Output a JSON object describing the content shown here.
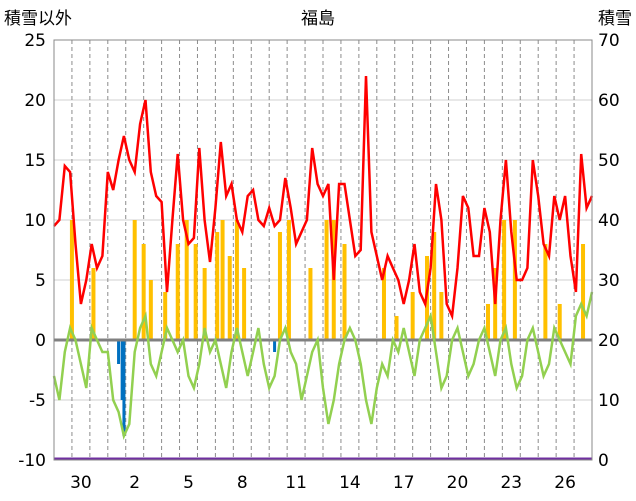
{
  "chart_data": {
    "type": "line",
    "title": "福島",
    "left_axis_label": "積雪以外",
    "right_axis_label": "積雪",
    "y_left": {
      "min": -10,
      "max": 25,
      "ticks": [
        "25",
        "20",
        "15",
        "10",
        "5",
        "0",
        "-5",
        "-10"
      ],
      "values": [
        25,
        20,
        15,
        10,
        5,
        0,
        -5,
        -10
      ]
    },
    "y_right": {
      "min": 0,
      "max": 70,
      "ticks": [
        "70",
        "60",
        "50",
        "40",
        "30",
        "20",
        "10",
        "0"
      ],
      "values": [
        70,
        60,
        50,
        40,
        30,
        20,
        10,
        0
      ]
    },
    "x": {
      "days": 30,
      "tick_labels": [
        "30",
        "2",
        "5",
        "8",
        "11",
        "14",
        "17",
        "20",
        "23",
        "26"
      ],
      "tick_positions": [
        1.5,
        4.5,
        7.5,
        10.5,
        13.5,
        16.5,
        19.5,
        22.5,
        25.5,
        28.5
      ]
    },
    "grid": true,
    "colors": {
      "temperature": "#ff0000",
      "precipitation": "#ffc000",
      "sunshine_diff": "#92d050",
      "snow": "#0070c0",
      "base": "#7030a0",
      "zero_line": "#808080"
    },
    "series": [
      {
        "key": "temperature",
        "points": [
          [
            0,
            9.5
          ],
          [
            0.3,
            10
          ],
          [
            0.6,
            14.5
          ],
          [
            0.9,
            14
          ],
          [
            1.2,
            8
          ],
          [
            1.5,
            3
          ],
          [
            1.8,
            5
          ],
          [
            2.1,
            8
          ],
          [
            2.4,
            6
          ],
          [
            2.7,
            7
          ],
          [
            3,
            14
          ],
          [
            3.3,
            12.5
          ],
          [
            3.6,
            15
          ],
          [
            3.9,
            17
          ],
          [
            4.2,
            15
          ],
          [
            4.5,
            14
          ],
          [
            4.8,
            18
          ],
          [
            5.1,
            20
          ],
          [
            5.4,
            14
          ],
          [
            5.7,
            12
          ],
          [
            6,
            11.5
          ],
          [
            6.3,
            4
          ],
          [
            6.6,
            10
          ],
          [
            6.9,
            15.5
          ],
          [
            7.2,
            10
          ],
          [
            7.5,
            8
          ],
          [
            7.8,
            8.5
          ],
          [
            8.1,
            16
          ],
          [
            8.4,
            10
          ],
          [
            8.7,
            6.5
          ],
          [
            9,
            11
          ],
          [
            9.3,
            16.5
          ],
          [
            9.6,
            12
          ],
          [
            9.9,
            13
          ],
          [
            10.2,
            10
          ],
          [
            10.5,
            9
          ],
          [
            10.8,
            12
          ],
          [
            11.1,
            12.5
          ],
          [
            11.4,
            10
          ],
          [
            11.7,
            9.5
          ],
          [
            12,
            11
          ],
          [
            12.3,
            9.5
          ],
          [
            12.6,
            10
          ],
          [
            12.9,
            13.5
          ],
          [
            13.2,
            11
          ],
          [
            13.5,
            8
          ],
          [
            13.8,
            9
          ],
          [
            14.1,
            10
          ],
          [
            14.4,
            16
          ],
          [
            14.7,
            13
          ],
          [
            15,
            12
          ],
          [
            15.3,
            13
          ],
          [
            15.6,
            5
          ],
          [
            15.9,
            13
          ],
          [
            16.2,
            13
          ],
          [
            16.5,
            10
          ],
          [
            16.8,
            7
          ],
          [
            17.1,
            7.5
          ],
          [
            17.4,
            22
          ],
          [
            17.7,
            9
          ],
          [
            18,
            7
          ],
          [
            18.3,
            5
          ],
          [
            18.6,
            7
          ],
          [
            18.9,
            6
          ],
          [
            19.2,
            5
          ],
          [
            19.5,
            3
          ],
          [
            19.8,
            5
          ],
          [
            20.1,
            8
          ],
          [
            20.4,
            4
          ],
          [
            20.7,
            3
          ],
          [
            21,
            6
          ],
          [
            21.3,
            13
          ],
          [
            21.6,
            10
          ],
          [
            21.9,
            3
          ],
          [
            22.2,
            2
          ],
          [
            22.5,
            6
          ],
          [
            22.8,
            12
          ],
          [
            23.1,
            11
          ],
          [
            23.4,
            7
          ],
          [
            23.7,
            7
          ],
          [
            24,
            11
          ],
          [
            24.3,
            9
          ],
          [
            24.6,
            3
          ],
          [
            24.9,
            10
          ],
          [
            25.2,
            15
          ],
          [
            25.5,
            9
          ],
          [
            25.8,
            5
          ],
          [
            26.1,
            5
          ],
          [
            26.4,
            6
          ],
          [
            26.7,
            15
          ],
          [
            27,
            12
          ],
          [
            27.3,
            8
          ],
          [
            27.6,
            7
          ],
          [
            27.9,
            12
          ],
          [
            28.2,
            10
          ],
          [
            28.5,
            12
          ],
          [
            28.8,
            7
          ],
          [
            29.1,
            4
          ],
          [
            29.4,
            15.5
          ],
          [
            29.7,
            11
          ],
          [
            30,
            12
          ]
        ]
      },
      {
        "key": "sunshine_diff",
        "points": [
          [
            0,
            -3
          ],
          [
            0.3,
            -5
          ],
          [
            0.6,
            -1
          ],
          [
            0.9,
            1
          ],
          [
            1.2,
            0
          ],
          [
            1.5,
            -2
          ],
          [
            1.8,
            -4
          ],
          [
            2.1,
            1
          ],
          [
            2.4,
            0
          ],
          [
            2.7,
            -1
          ],
          [
            3,
            -1
          ],
          [
            3.3,
            -5
          ],
          [
            3.6,
            -6
          ],
          [
            3.9,
            -8
          ],
          [
            4.2,
            -7
          ],
          [
            4.5,
            -1
          ],
          [
            4.8,
            1
          ],
          [
            5.1,
            2
          ],
          [
            5.4,
            -2
          ],
          [
            5.7,
            -3
          ],
          [
            6,
            -1
          ],
          [
            6.3,
            1
          ],
          [
            6.6,
            0
          ],
          [
            6.9,
            -1
          ],
          [
            7.2,
            0
          ],
          [
            7.5,
            -3
          ],
          [
            7.8,
            -4
          ],
          [
            8.1,
            -2
          ],
          [
            8.4,
            1
          ],
          [
            8.7,
            -1
          ],
          [
            9,
            0
          ],
          [
            9.3,
            -2
          ],
          [
            9.6,
            -4
          ],
          [
            9.9,
            -1
          ],
          [
            10.2,
            1
          ],
          [
            10.5,
            -1
          ],
          [
            10.8,
            -3
          ],
          [
            11.1,
            -1
          ],
          [
            11.4,
            1
          ],
          [
            11.7,
            -2
          ],
          [
            12,
            -4
          ],
          [
            12.3,
            -3
          ],
          [
            12.6,
            0
          ],
          [
            12.9,
            1
          ],
          [
            13.2,
            -1
          ],
          [
            13.5,
            -2
          ],
          [
            13.8,
            -5
          ],
          [
            14.1,
            -3
          ],
          [
            14.4,
            -1
          ],
          [
            14.7,
            0
          ],
          [
            15,
            -4
          ],
          [
            15.3,
            -7
          ],
          [
            15.6,
            -5
          ],
          [
            15.9,
            -2
          ],
          [
            16.2,
            0
          ],
          [
            16.5,
            1
          ],
          [
            16.8,
            0
          ],
          [
            17.1,
            -2
          ],
          [
            17.4,
            -5
          ],
          [
            17.7,
            -7
          ],
          [
            18,
            -4
          ],
          [
            18.3,
            -2
          ],
          [
            18.6,
            -3
          ],
          [
            18.9,
            0
          ],
          [
            19.2,
            -1
          ],
          [
            19.5,
            1
          ],
          [
            19.8,
            -1
          ],
          [
            20.1,
            -3
          ],
          [
            20.4,
            0
          ],
          [
            20.7,
            1
          ],
          [
            21,
            2
          ],
          [
            21.3,
            -1
          ],
          [
            21.6,
            -4
          ],
          [
            21.9,
            -3
          ],
          [
            22.2,
            0
          ],
          [
            22.5,
            1
          ],
          [
            22.8,
            -1
          ],
          [
            23.1,
            -3
          ],
          [
            23.4,
            -2
          ],
          [
            23.7,
            0
          ],
          [
            24,
            1
          ],
          [
            24.3,
            -1
          ],
          [
            24.6,
            -3
          ],
          [
            24.9,
            0
          ],
          [
            25.2,
            1
          ],
          [
            25.5,
            -2
          ],
          [
            25.8,
            -4
          ],
          [
            26.1,
            -3
          ],
          [
            26.4,
            0
          ],
          [
            26.7,
            1
          ],
          [
            27,
            -1
          ],
          [
            27.3,
            -3
          ],
          [
            27.6,
            -2
          ],
          [
            27.9,
            1
          ],
          [
            28.2,
            0
          ],
          [
            28.5,
            -1
          ],
          [
            28.8,
            -2
          ],
          [
            29.1,
            2
          ],
          [
            29.4,
            3
          ],
          [
            29.7,
            2
          ],
          [
            30,
            4
          ]
        ]
      },
      {
        "key": "precipitation",
        "bars": [
          [
            1.0,
            10
          ],
          [
            2.2,
            6
          ],
          [
            4.5,
            10
          ],
          [
            5.0,
            8
          ],
          [
            5.4,
            5
          ],
          [
            6.2,
            4
          ],
          [
            6.9,
            8
          ],
          [
            7.4,
            10
          ],
          [
            7.9,
            8
          ],
          [
            8.4,
            6
          ],
          [
            9.1,
            9
          ],
          [
            9.4,
            10
          ],
          [
            9.8,
            7
          ],
          [
            10.2,
            10
          ],
          [
            10.6,
            6
          ],
          [
            12.6,
            9
          ],
          [
            13.1,
            10
          ],
          [
            14.3,
            6
          ],
          [
            15.2,
            10
          ],
          [
            15.6,
            10
          ],
          [
            16.2,
            8
          ],
          [
            18.4,
            6
          ],
          [
            19.1,
            2
          ],
          [
            20.0,
            4
          ],
          [
            20.8,
            7
          ],
          [
            21.2,
            9
          ],
          [
            21.6,
            4
          ],
          [
            24.2,
            3
          ],
          [
            24.6,
            6
          ],
          [
            25.1,
            10
          ],
          [
            25.7,
            10
          ],
          [
            27.4,
            8
          ],
          [
            28.2,
            3
          ],
          [
            29.5,
            8
          ]
        ]
      },
      {
        "key": "snow",
        "bars": [
          [
            3.6,
            16
          ],
          [
            3.8,
            10
          ],
          [
            3.9,
            4
          ],
          [
            12.3,
            18
          ]
        ]
      }
    ]
  }
}
